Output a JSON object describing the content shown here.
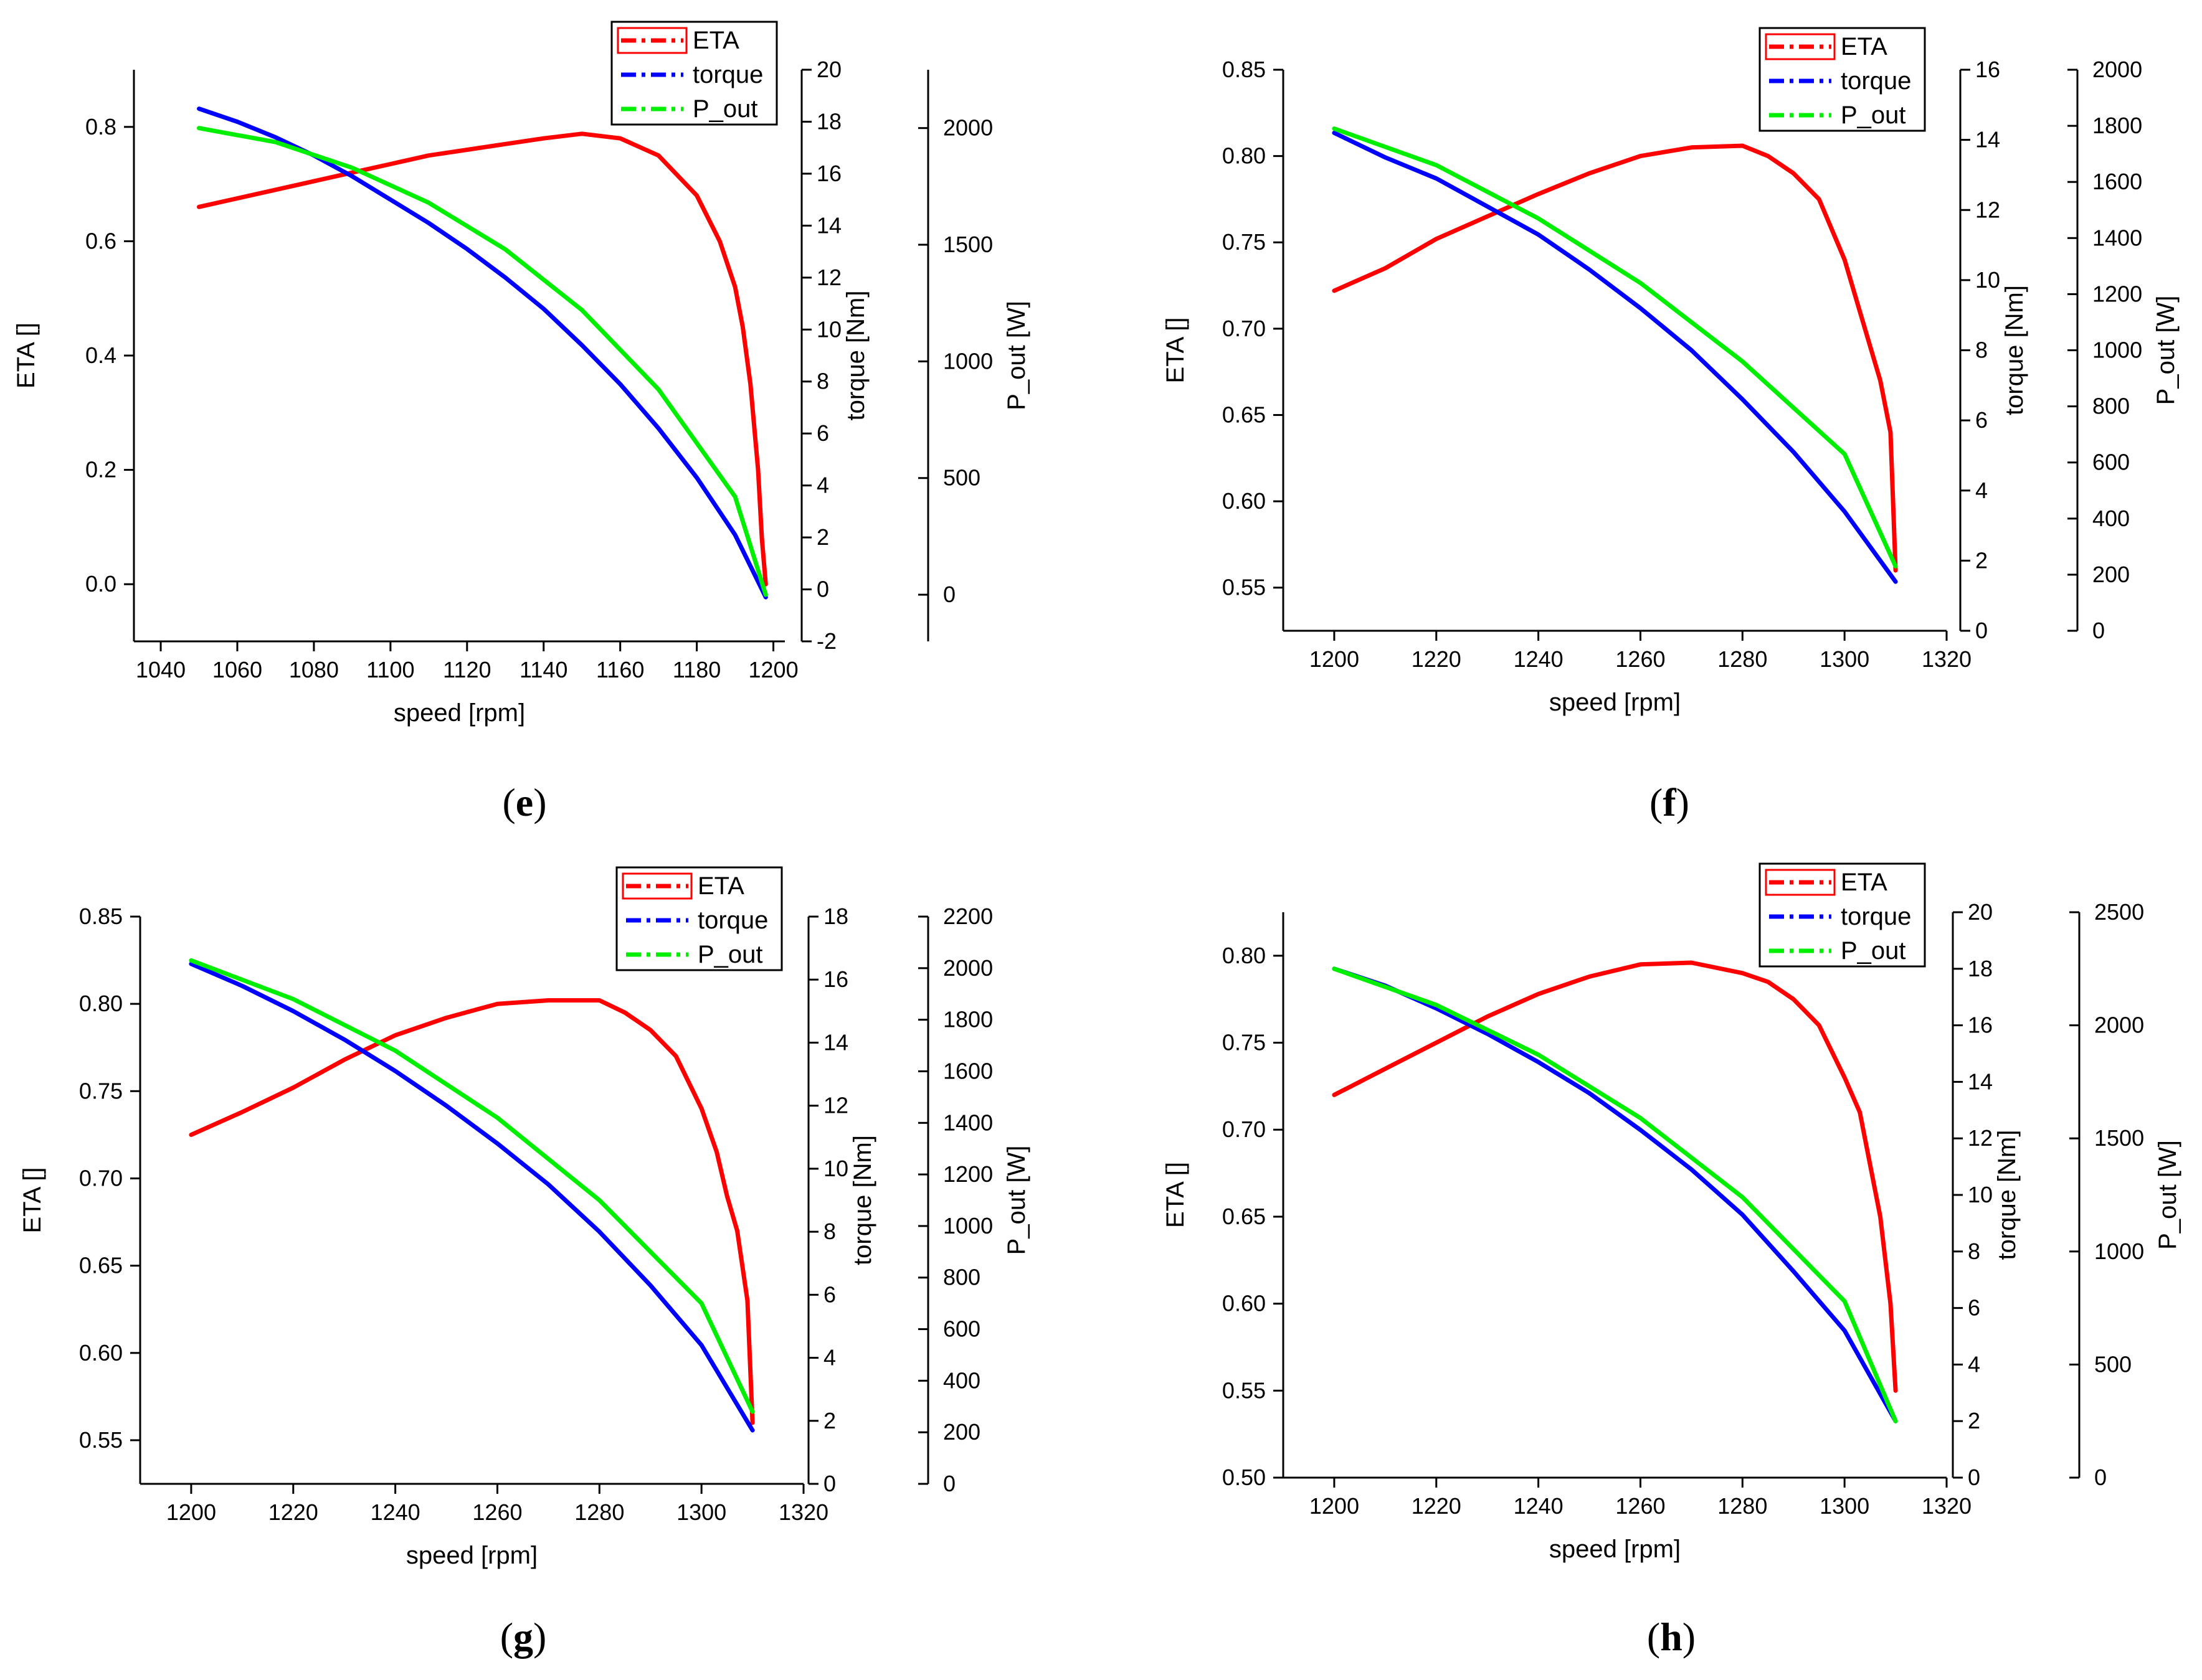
{
  "figure": {
    "legend_entries": [
      "ETA",
      "torque",
      "P_out"
    ],
    "series_colors": {
      "ETA": "#ff0000",
      "torque": "#0000ff",
      "P_out": "#00ee00"
    }
  },
  "chart_data": [
    {
      "panel": "e",
      "type": "line",
      "title": "",
      "xlabel": "speed [rpm]",
      "ylabels": {
        "ETA": "ETA []",
        "torque": "torque [Nm]",
        "P_out": "P_out [W]"
      },
      "xlim": [
        1033,
        1203
      ],
      "xticks": [
        1040,
        1060,
        1080,
        1100,
        1120,
        1140,
        1160,
        1180,
        1200
      ],
      "axes": {
        "ETA": {
          "lim": [
            -0.1,
            0.9
          ],
          "ticks": [
            0.0,
            0.2,
            0.4,
            0.6,
            0.8
          ],
          "decimals": 1
        },
        "torque": {
          "lim": [
            -2,
            20
          ],
          "ticks": [
            -2,
            0,
            2,
            4,
            6,
            8,
            10,
            12,
            14,
            16,
            18,
            20
          ],
          "decimals": 0
        },
        "P_out": {
          "lim": [
            -200,
            2250
          ],
          "ticks": [
            0,
            500,
            1000,
            1500,
            2000
          ],
          "decimals": 0
        }
      },
      "legend": {
        "position": "top-right",
        "entries": [
          "ETA",
          "torque",
          "P_out"
        ]
      },
      "series": [
        {
          "name": "ETA",
          "axis": "ETA",
          "x": [
            1050,
            1070,
            1090,
            1110,
            1130,
            1140,
            1150,
            1160,
            1170,
            1180,
            1186,
            1190,
            1192,
            1194,
            1196,
            1197,
            1198
          ],
          "y": [
            0.66,
            0.69,
            0.72,
            0.75,
            0.77,
            0.78,
            0.788,
            0.78,
            0.75,
            0.68,
            0.6,
            0.52,
            0.45,
            0.35,
            0.2,
            0.08,
            0.0
          ]
        },
        {
          "name": "torque",
          "axis": "torque",
          "x": [
            1050,
            1060,
            1070,
            1080,
            1090,
            1100,
            1110,
            1120,
            1130,
            1140,
            1150,
            1160,
            1170,
            1180,
            1190,
            1198
          ],
          "y": [
            18.5,
            18.0,
            17.4,
            16.7,
            15.9,
            15.0,
            14.1,
            13.1,
            12.0,
            10.8,
            9.4,
            7.9,
            6.2,
            4.3,
            2.1,
            -0.3
          ]
        },
        {
          "name": "P_out",
          "axis": "P_out",
          "x": [
            1050,
            1070,
            1090,
            1110,
            1130,
            1150,
            1170,
            1190,
            1198
          ],
          "y": [
            2000,
            1940,
            1830,
            1680,
            1480,
            1220,
            880,
            420,
            0
          ]
        }
      ]
    },
    {
      "panel": "f",
      "type": "line",
      "title": "",
      "xlabel": "speed [rpm]",
      "ylabels": {
        "ETA": "ETA []",
        "torque": "torque [Nm]",
        "P_out": "P_out [W]"
      },
      "xlim": [
        1190,
        1320
      ],
      "xticks": [
        1200,
        1220,
        1240,
        1260,
        1280,
        1300,
        1320
      ],
      "axes": {
        "ETA": {
          "lim": [
            0.525,
            0.85
          ],
          "ticks": [
            0.55,
            0.6,
            0.65,
            0.7,
            0.75,
            0.8,
            0.85
          ],
          "decimals": 2
        },
        "torque": {
          "lim": [
            0,
            16
          ],
          "ticks": [
            0,
            2,
            4,
            6,
            8,
            10,
            12,
            14,
            16
          ],
          "decimals": 0
        },
        "P_out": {
          "lim": [
            0,
            2000
          ],
          "ticks": [
            0,
            200,
            400,
            600,
            800,
            1000,
            1200,
            1400,
            1600,
            1800,
            2000
          ],
          "decimals": 0
        }
      },
      "legend": {
        "position": "top-right",
        "entries": [
          "ETA",
          "torque",
          "P_out"
        ]
      },
      "series": [
        {
          "name": "ETA",
          "axis": "ETA",
          "x": [
            1200,
            1210,
            1220,
            1230,
            1240,
            1250,
            1260,
            1270,
            1280,
            1285,
            1290,
            1295,
            1300,
            1303,
            1305,
            1307,
            1309,
            1310
          ],
          "y": [
            0.722,
            0.735,
            0.752,
            0.765,
            0.778,
            0.79,
            0.8,
            0.805,
            0.806,
            0.8,
            0.79,
            0.775,
            0.74,
            0.71,
            0.69,
            0.67,
            0.64,
            0.56
          ]
        },
        {
          "name": "torque",
          "axis": "torque",
          "x": [
            1200,
            1210,
            1220,
            1230,
            1240,
            1250,
            1260,
            1270,
            1280,
            1290,
            1300,
            1310
          ],
          "y": [
            14.2,
            13.5,
            12.9,
            12.1,
            11.3,
            10.3,
            9.2,
            8.0,
            6.6,
            5.1,
            3.4,
            1.4
          ]
        },
        {
          "name": "P_out",
          "axis": "P_out",
          "x": [
            1200,
            1220,
            1240,
            1260,
            1280,
            1300,
            1310
          ],
          "y": [
            1790,
            1660,
            1470,
            1240,
            960,
            630,
            230
          ]
        }
      ]
    },
    {
      "panel": "g",
      "type": "line",
      "title": "",
      "xlabel": "speed [rpm]",
      "ylabels": {
        "ETA": "ETA []",
        "torque": "torque [Nm]",
        "P_out": "P_out [W]"
      },
      "xlim": [
        1190,
        1320
      ],
      "xticks": [
        1200,
        1220,
        1240,
        1260,
        1280,
        1300,
        1320
      ],
      "axes": {
        "ETA": {
          "lim": [
            0.525,
            0.85
          ],
          "ticks": [
            0.55,
            0.6,
            0.65,
            0.7,
            0.75,
            0.8,
            0.85
          ],
          "decimals": 2
        },
        "torque": {
          "lim": [
            0,
            18
          ],
          "ticks": [
            0,
            2,
            4,
            6,
            8,
            10,
            12,
            14,
            16,
            18
          ],
          "decimals": 0
        },
        "P_out": {
          "lim": [
            0,
            2200
          ],
          "ticks": [
            0,
            200,
            400,
            600,
            800,
            1000,
            1200,
            1400,
            1600,
            1800,
            2000,
            2200
          ],
          "decimals": 0
        }
      },
      "legend": {
        "position": "top-right",
        "entries": [
          "ETA",
          "torque",
          "P_out"
        ]
      },
      "series": [
        {
          "name": "ETA",
          "axis": "ETA",
          "x": [
            1200,
            1210,
            1220,
            1230,
            1240,
            1250,
            1260,
            1270,
            1280,
            1285,
            1290,
            1295,
            1300,
            1303,
            1305,
            1307,
            1309,
            1310
          ],
          "y": [
            0.725,
            0.738,
            0.752,
            0.768,
            0.782,
            0.792,
            0.8,
            0.802,
            0.802,
            0.795,
            0.785,
            0.77,
            0.74,
            0.715,
            0.69,
            0.67,
            0.63,
            0.56
          ]
        },
        {
          "name": "torque",
          "axis": "torque",
          "x": [
            1200,
            1210,
            1220,
            1230,
            1240,
            1250,
            1260,
            1270,
            1280,
            1290,
            1300,
            1310
          ],
          "y": [
            16.5,
            15.8,
            15.0,
            14.1,
            13.1,
            12.0,
            10.8,
            9.5,
            8.0,
            6.3,
            4.4,
            1.7
          ]
        },
        {
          "name": "P_out",
          "axis": "P_out",
          "x": [
            1200,
            1220,
            1240,
            1260,
            1280,
            1300,
            1310
          ],
          "y": [
            2030,
            1880,
            1680,
            1420,
            1100,
            700,
            280
          ]
        }
      ]
    },
    {
      "panel": "h",
      "type": "line",
      "title": "",
      "xlabel": "speed [rpm]",
      "ylabels": {
        "ETA": "ETA []",
        "torque": "torque [Nm]",
        "P_out": "P_out [W]"
      },
      "xlim": [
        1190,
        1320
      ],
      "xticks": [
        1200,
        1220,
        1240,
        1260,
        1280,
        1300,
        1320
      ],
      "axes": {
        "ETA": {
          "lim": [
            0.5,
            0.825
          ],
          "ticks": [
            0.5,
            0.55,
            0.6,
            0.65,
            0.7,
            0.75,
            0.8
          ],
          "decimals": 2
        },
        "torque": {
          "lim": [
            0,
            20
          ],
          "ticks": [
            0,
            2,
            4,
            6,
            8,
            10,
            12,
            14,
            16,
            18,
            20
          ],
          "decimals": 0
        },
        "P_out": {
          "lim": [
            0,
            2500
          ],
          "ticks": [
            0,
            500,
            1000,
            1500,
            2000,
            2500
          ],
          "decimals": 0
        }
      },
      "legend": {
        "position": "top-right",
        "entries": [
          "ETA",
          "torque",
          "P_out"
        ]
      },
      "series": [
        {
          "name": "ETA",
          "axis": "ETA",
          "x": [
            1200,
            1210,
            1220,
            1230,
            1240,
            1250,
            1260,
            1270,
            1280,
            1285,
            1290,
            1295,
            1300,
            1303,
            1305,
            1307,
            1309,
            1310
          ],
          "y": [
            0.72,
            0.735,
            0.75,
            0.765,
            0.778,
            0.788,
            0.795,
            0.796,
            0.79,
            0.785,
            0.775,
            0.76,
            0.73,
            0.71,
            0.68,
            0.65,
            0.6,
            0.55
          ]
        },
        {
          "name": "torque",
          "axis": "torque",
          "x": [
            1200,
            1210,
            1220,
            1230,
            1240,
            1250,
            1260,
            1270,
            1280,
            1290,
            1300,
            1310
          ],
          "y": [
            18.0,
            17.4,
            16.6,
            15.7,
            14.7,
            13.6,
            12.3,
            10.9,
            9.3,
            7.3,
            5.2,
            2.0
          ]
        },
        {
          "name": "P_out",
          "axis": "P_out",
          "x": [
            1200,
            1220,
            1240,
            1260,
            1280,
            1300,
            1310
          ],
          "y": [
            2250,
            2090,
            1870,
            1590,
            1240,
            780,
            250
          ]
        }
      ]
    }
  ]
}
